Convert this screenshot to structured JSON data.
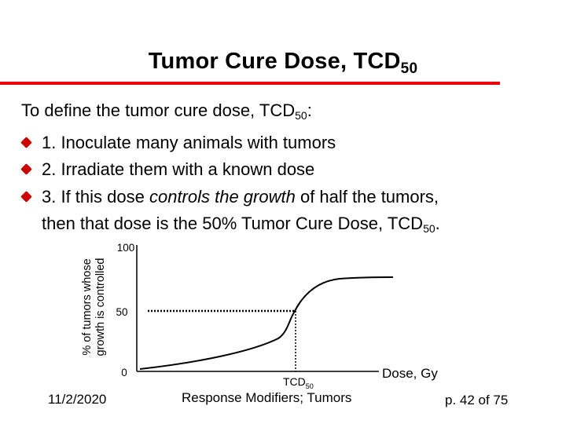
{
  "slide": {
    "title": "Tumor Cure Dose, TCD",
    "title_sub": "50"
  },
  "intro": {
    "text": "To define the tumor cure dose, TCD",
    "sub": "50",
    "suffix": ":"
  },
  "bullets": [
    {
      "text": "1. Inoculate many animals with tumors"
    },
    {
      "text": "2. Irradiate them with a known dose"
    },
    {
      "before": "3. If this dose ",
      "emph": "controls the growth",
      "after": " of half the tumors,"
    }
  ],
  "continuation": {
    "text": "then that dose is the 50% Tumor Cure Dose, TCD",
    "sub": "50",
    "suffix": "."
  },
  "chart_data": {
    "type": "line",
    "ylabel_line1": "% of tumors whose",
    "ylabel_line2": "growth is controlled",
    "xlabel": "Dose, Gy",
    "y_ticks": [
      "100",
      "50",
      "0"
    ],
    "tcd_label": "TCD",
    "tcd_sub": "50",
    "ylim": [
      0,
      100
    ],
    "reference_level": 50
  },
  "footer": {
    "date": "11/2/2020",
    "center": "Response Modifiers; Tumors",
    "page": "p. 42 of 75"
  },
  "colors": {
    "accent_rule": "#e8000d",
    "bullet": "#cc0000",
    "curve": "#000000"
  }
}
